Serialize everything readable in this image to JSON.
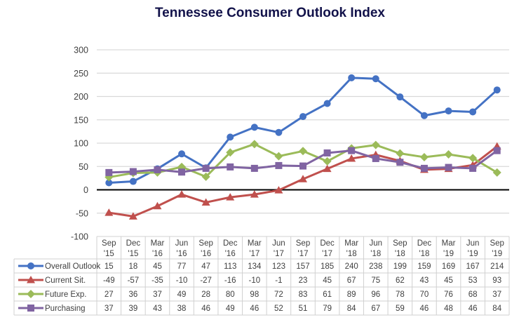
{
  "chart_data": {
    "type": "line",
    "title": "Tennessee Consumer Outlook Index",
    "xlabel": "",
    "ylabel": "",
    "ylim": [
      -100,
      300
    ],
    "yticks": [
      300,
      250,
      200,
      150,
      100,
      50,
      0,
      -50,
      -100
    ],
    "grid": true,
    "legend": "data-table-left",
    "categories": [
      [
        "Sep",
        "'15"
      ],
      [
        "Dec",
        "'15"
      ],
      [
        "Mar",
        "'16"
      ],
      [
        "Jun",
        "'16"
      ],
      [
        "Sep",
        "'16"
      ],
      [
        "Dec",
        "'16"
      ],
      [
        "Mar",
        "'17"
      ],
      [
        "Jun",
        "'17"
      ],
      [
        "Sep",
        "'17"
      ],
      [
        "Dec",
        "'17"
      ],
      [
        "Mar",
        "'18"
      ],
      [
        "Jun",
        "'18"
      ],
      [
        "Sep",
        "'18"
      ],
      [
        "Dec",
        "'18"
      ],
      [
        "Mar",
        "'19"
      ],
      [
        "Jun",
        "'19"
      ],
      [
        "Sep",
        "'19"
      ]
    ],
    "series": [
      {
        "name": "Overall Outlook",
        "color": "#4472c4",
        "marker": "circle",
        "values": [
          15,
          18,
          45,
          77,
          47,
          113,
          134,
          123,
          157,
          185,
          240,
          238,
          199,
          159,
          169,
          167,
          214
        ]
      },
      {
        "name": "Current Sit.",
        "color": "#c0504d",
        "marker": "triangle",
        "values": [
          -49,
          -57,
          -35,
          -10,
          -27,
          -16,
          -10,
          -1,
          23,
          45,
          67,
          75,
          62,
          43,
          45,
          53,
          93
        ]
      },
      {
        "name": "Future Exp.",
        "color": "#9bbb59",
        "marker": "diamond",
        "values": [
          27,
          36,
          37,
          49,
          28,
          80,
          98,
          72,
          83,
          61,
          89,
          96,
          78,
          70,
          76,
          68,
          37
        ]
      },
      {
        "name": "Purchasing",
        "color": "#8064a2",
        "marker": "square",
        "values": [
          37,
          39,
          43,
          38,
          46,
          49,
          46,
          52,
          51,
          79,
          84,
          67,
          59,
          46,
          48,
          46,
          84
        ]
      }
    ]
  },
  "colors": {
    "title": "#12124a",
    "gridline": "#d9d9d9",
    "zero_line": "#000000",
    "table_border": "#d0d0d0"
  }
}
